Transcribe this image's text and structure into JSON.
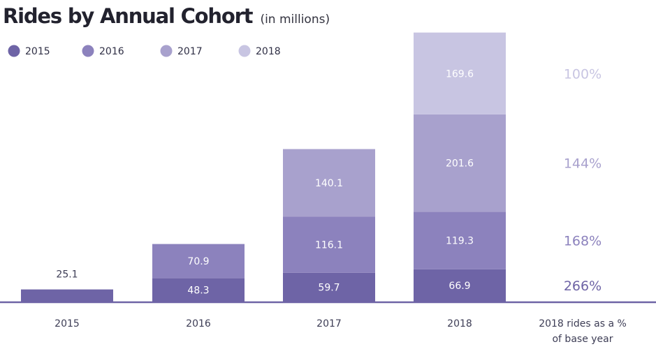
{
  "chart_data": {
    "type": "bar",
    "stacked": true,
    "title": "Rides by Annual Cohort",
    "subtitle": "(in millions)",
    "categories": [
      "2015",
      "2016",
      "2017",
      "2018"
    ],
    "series": [
      {
        "name": "2015",
        "color": "#6e64a6",
        "values": [
          25.1,
          48.3,
          59.7,
          66.9
        ]
      },
      {
        "name": "2016",
        "color": "#8c82bd",
        "values": [
          null,
          70.9,
          116.1,
          119.3
        ]
      },
      {
        "name": "2017",
        "color": "#a8a1cd",
        "values": [
          null,
          null,
          140.1,
          201.6
        ]
      },
      {
        "name": "2018",
        "color": "#c8c5e2",
        "values": [
          null,
          null,
          null,
          169.6
        ]
      }
    ],
    "side_column": {
      "label_line1": "2018 rides as a %",
      "label_line2": "of base year",
      "values": [
        {
          "text": "100%",
          "color": "#c8c5e2"
        },
        {
          "text": "144%",
          "color": "#a8a1cd"
        },
        {
          "text": "168%",
          "color": "#8c82bd"
        },
        {
          "text": "266%",
          "color": "#6e64a6"
        }
      ]
    },
    "legend_position": "top-left",
    "axis_color": "#6e64a6",
    "ylim": [
      0,
      560
    ]
  }
}
